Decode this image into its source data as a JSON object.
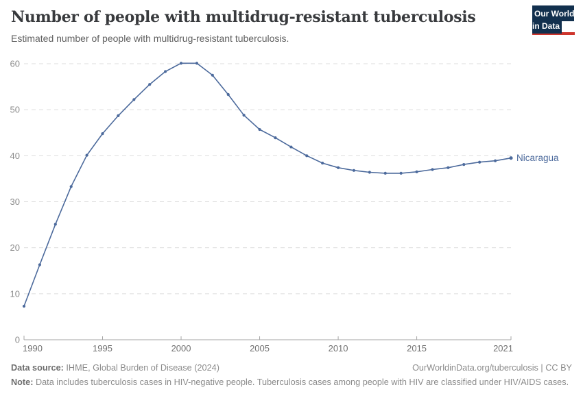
{
  "header": {
    "title": "Number of people with multidrug-resistant tuberculosis",
    "subtitle": "Estimated number of people with multidrug-resistant tuberculosis.",
    "logo": {
      "line1": "Our World",
      "line2": "in Data"
    }
  },
  "chart_data": {
    "type": "line",
    "title": "Number of people with multidrug-resistant tuberculosis",
    "xlabel": "",
    "ylabel": "",
    "xlim": [
      1990,
      2021
    ],
    "ylim": [
      0,
      60
    ],
    "x_ticks": [
      1990,
      1995,
      2000,
      2005,
      2010,
      2015,
      2021
    ],
    "y_ticks": [
      0,
      10,
      20,
      30,
      40,
      50,
      60
    ],
    "grid": "horizontal-dashed",
    "legend_position": "end-of-line-label",
    "series": [
      {
        "name": "Nicaragua",
        "color": "#4C6A9C",
        "x": [
          1990,
          1991,
          1992,
          1993,
          1994,
          1995,
          1996,
          1997,
          1998,
          1999,
          2000,
          2001,
          2002,
          2003,
          2004,
          2005,
          2006,
          2007,
          2008,
          2009,
          2010,
          2011,
          2012,
          2013,
          2014,
          2015,
          2016,
          2017,
          2018,
          2019,
          2020,
          2021
        ],
        "values": [
          7.3,
          16.3,
          25.1,
          33.3,
          40.1,
          44.8,
          48.7,
          52.2,
          55.5,
          58.3,
          60.1,
          60.1,
          57.5,
          53.3,
          48.8,
          45.7,
          43.9,
          41.9,
          40.0,
          38.4,
          37.4,
          36.8,
          36.4,
          36.2,
          36.2,
          36.5,
          37.0,
          37.4,
          38.1,
          38.6,
          38.9,
          39.5
        ]
      }
    ]
  },
  "footer": {
    "datasource_label": "Data source:",
    "datasource_text": " IHME, Global Burden of Disease (2024)",
    "rights": "OurWorldinData.org/tuberculosis | CC BY",
    "note_label": "Note:",
    "note_text": " Data includes tuberculosis cases in HIV-negative people. Tuberculosis cases among people with HIV are classified under HIV/AIDS cases."
  },
  "colors": {
    "accent_line": "#4C6A9C",
    "logo_navy": "#12304e",
    "logo_red": "#ce352c",
    "gridline": "#dcdcdc",
    "axis": "#a5a5a5",
    "y_tick_label": "#8c8c8c",
    "x_tick_label": "#707070"
  }
}
